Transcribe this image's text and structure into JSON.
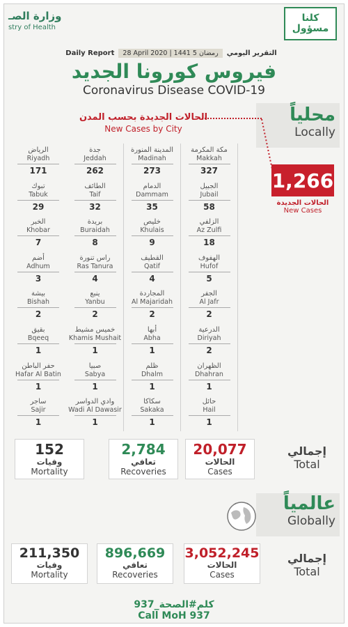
{
  "header": {
    "moh_ar": "وزارة الصـ",
    "moh_en": "stry of Health",
    "kulluna_line1": "كلنا",
    "kulluna_line2": "مسؤول",
    "daily_report_en": "Daily Report",
    "date_text": "28 April 2020 | 1441 رمضان 5",
    "daily_report_ar": "التقرير اليومي",
    "title_ar": "فيروس كورونا الجديد",
    "title_en": "Coronavirus Disease COVID-19"
  },
  "local": {
    "label_ar": "محلياً",
    "label_en": "Locally",
    "cities_head_ar": "الحالات الجديدة بحسب المدن",
    "cities_head_en": "New Cases by City",
    "new_cases_value": "1,266",
    "new_cases_ar": "الحالات الجديدة",
    "new_cases_en": "New Cases",
    "cities": [
      {
        "ar": "مكة المكرمة",
        "en": "Makkah",
        "value": "327"
      },
      {
        "ar": "المدينة المنورة",
        "en": "Madinah",
        "value": "273"
      },
      {
        "ar": "جدة",
        "en": "Jeddah",
        "value": "262"
      },
      {
        "ar": "الرياض",
        "en": "Riyadh",
        "value": "171"
      },
      {
        "ar": "الجبيل",
        "en": "Jubail",
        "value": "58"
      },
      {
        "ar": "الدمام",
        "en": "Dammam",
        "value": "35"
      },
      {
        "ar": "الطائف",
        "en": "Taif",
        "value": "32"
      },
      {
        "ar": "تبوك",
        "en": "Tabuk",
        "value": "29"
      },
      {
        "ar": "الزلفي",
        "en": "Az Zulfi",
        "value": "18"
      },
      {
        "ar": "خليص",
        "en": "Khulais",
        "value": "9"
      },
      {
        "ar": "بريدة",
        "en": "Buraidah",
        "value": "8"
      },
      {
        "ar": "الخبر",
        "en": "Khobar",
        "value": "7"
      },
      {
        "ar": "الهفوف",
        "en": "Hufof",
        "value": "5"
      },
      {
        "ar": "القطيف",
        "en": "Qatif",
        "value": "4"
      },
      {
        "ar": "راس تنورة",
        "en": "Ras Tanura",
        "value": "4"
      },
      {
        "ar": "أضم",
        "en": "Adhum",
        "value": "3"
      },
      {
        "ar": "الجفر",
        "en": "Al Jafr",
        "value": "2"
      },
      {
        "ar": "المجاردة",
        "en": "Al Majaridah",
        "value": "2"
      },
      {
        "ar": "ينبع",
        "en": "Yanbu",
        "value": "2"
      },
      {
        "ar": "بيشة",
        "en": "Bishah",
        "value": "2"
      },
      {
        "ar": "الدرعية",
        "en": "Diriyah",
        "value": "2"
      },
      {
        "ar": "أبها",
        "en": "Abha",
        "value": "1"
      },
      {
        "ar": "خميس مشيط",
        "en": "Khamis Mushait",
        "value": "1"
      },
      {
        "ar": "بقيق",
        "en": "Bqeeq",
        "value": "1"
      },
      {
        "ar": "الظهران",
        "en": "Dhahran",
        "value": "1"
      },
      {
        "ar": "ظلم",
        "en": "Dhalm",
        "value": "1"
      },
      {
        "ar": "صبيا",
        "en": "Sabya",
        "value": "1"
      },
      {
        "ar": "حفر الباطن",
        "en": "Hafar Al Batin",
        "value": "1"
      },
      {
        "ar": "حائل",
        "en": "Hail",
        "value": "1"
      },
      {
        "ar": "سكاكا",
        "en": "Sakaka",
        "value": "1"
      },
      {
        "ar": "وادي الدواسر",
        "en": "Wadi Al Dawasir",
        "value": "1"
      },
      {
        "ar": "ساجر",
        "en": "Sajir",
        "value": "1"
      }
    ],
    "total": {
      "label_ar": "إجمالي",
      "label_en": "Total",
      "cases": {
        "value": "20,077",
        "ar": "الحالات",
        "en": "Cases"
      },
      "recoveries": {
        "value": "2,784",
        "ar": "تعافي",
        "en": "Recoveries"
      },
      "mortality": {
        "value": "152",
        "ar": "وفيات",
        "en": "Mortality"
      }
    }
  },
  "global": {
    "label_ar": "عالمياً",
    "label_en": "Globally",
    "total": {
      "label_ar": "إجمالي",
      "label_en": "Total",
      "cases": {
        "value": "3,052,245",
        "ar": "الحالات",
        "en": "Cases"
      },
      "recoveries": {
        "value": "896,669",
        "ar": "تعافي",
        "en": "Recoveries"
      },
      "mortality": {
        "value": "211,350",
        "ar": "وفيات",
        "en": "Mortality"
      }
    }
  },
  "footer": {
    "ar": "كلم#الصحة_937",
    "en": "Call MoH 937"
  },
  "colors": {
    "green": "#2f8a57",
    "red": "#c0202a",
    "panel": "#e6e6e3"
  }
}
